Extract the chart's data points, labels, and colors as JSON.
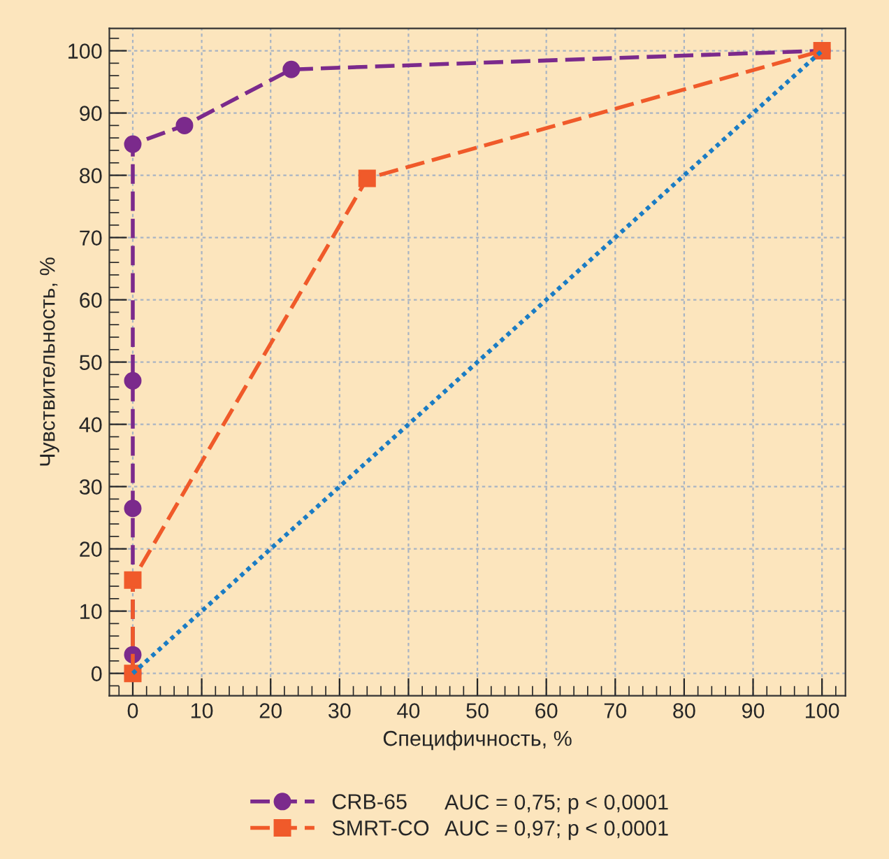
{
  "chart_data": {
    "type": "line",
    "xlabel": "Специфичность, %",
    "ylabel": "Чувствительность, %",
    "xlim": [
      -3.4,
      103.4
    ],
    "ylim": [
      -3.6,
      103.6
    ],
    "xticks": [
      0,
      10,
      20,
      30,
      40,
      50,
      60,
      70,
      80,
      90,
      100
    ],
    "yticks": [
      0,
      10,
      20,
      30,
      40,
      50,
      60,
      70,
      80,
      90,
      100
    ],
    "grid": true,
    "legend": "bottom",
    "series": [
      {
        "name": "CRB-65",
        "color": "#7b2a8c",
        "marker": "circle",
        "line_style": "dashed",
        "x": [
          0,
          0,
          0,
          0,
          0,
          7.5,
          23,
          100
        ],
        "values": [
          0,
          3,
          26.5,
          47,
          85,
          88,
          97,
          100
        ]
      },
      {
        "name": "SMRT-CO",
        "color": "#f05a2a",
        "marker": "square",
        "line_style": "dashed",
        "x": [
          0,
          0,
          34,
          100
        ],
        "values": [
          0,
          15,
          79.5,
          100
        ]
      },
      {
        "color": "#1a7cc4",
        "marker": "none",
        "line_style": "dotted",
        "x": [
          0,
          100
        ],
        "values": [
          0,
          100
        ]
      }
    ],
    "annotations": [
      "AUC = 0,75; p < 0,0001",
      "AUC = 0,97; p < 0,0001"
    ]
  }
}
